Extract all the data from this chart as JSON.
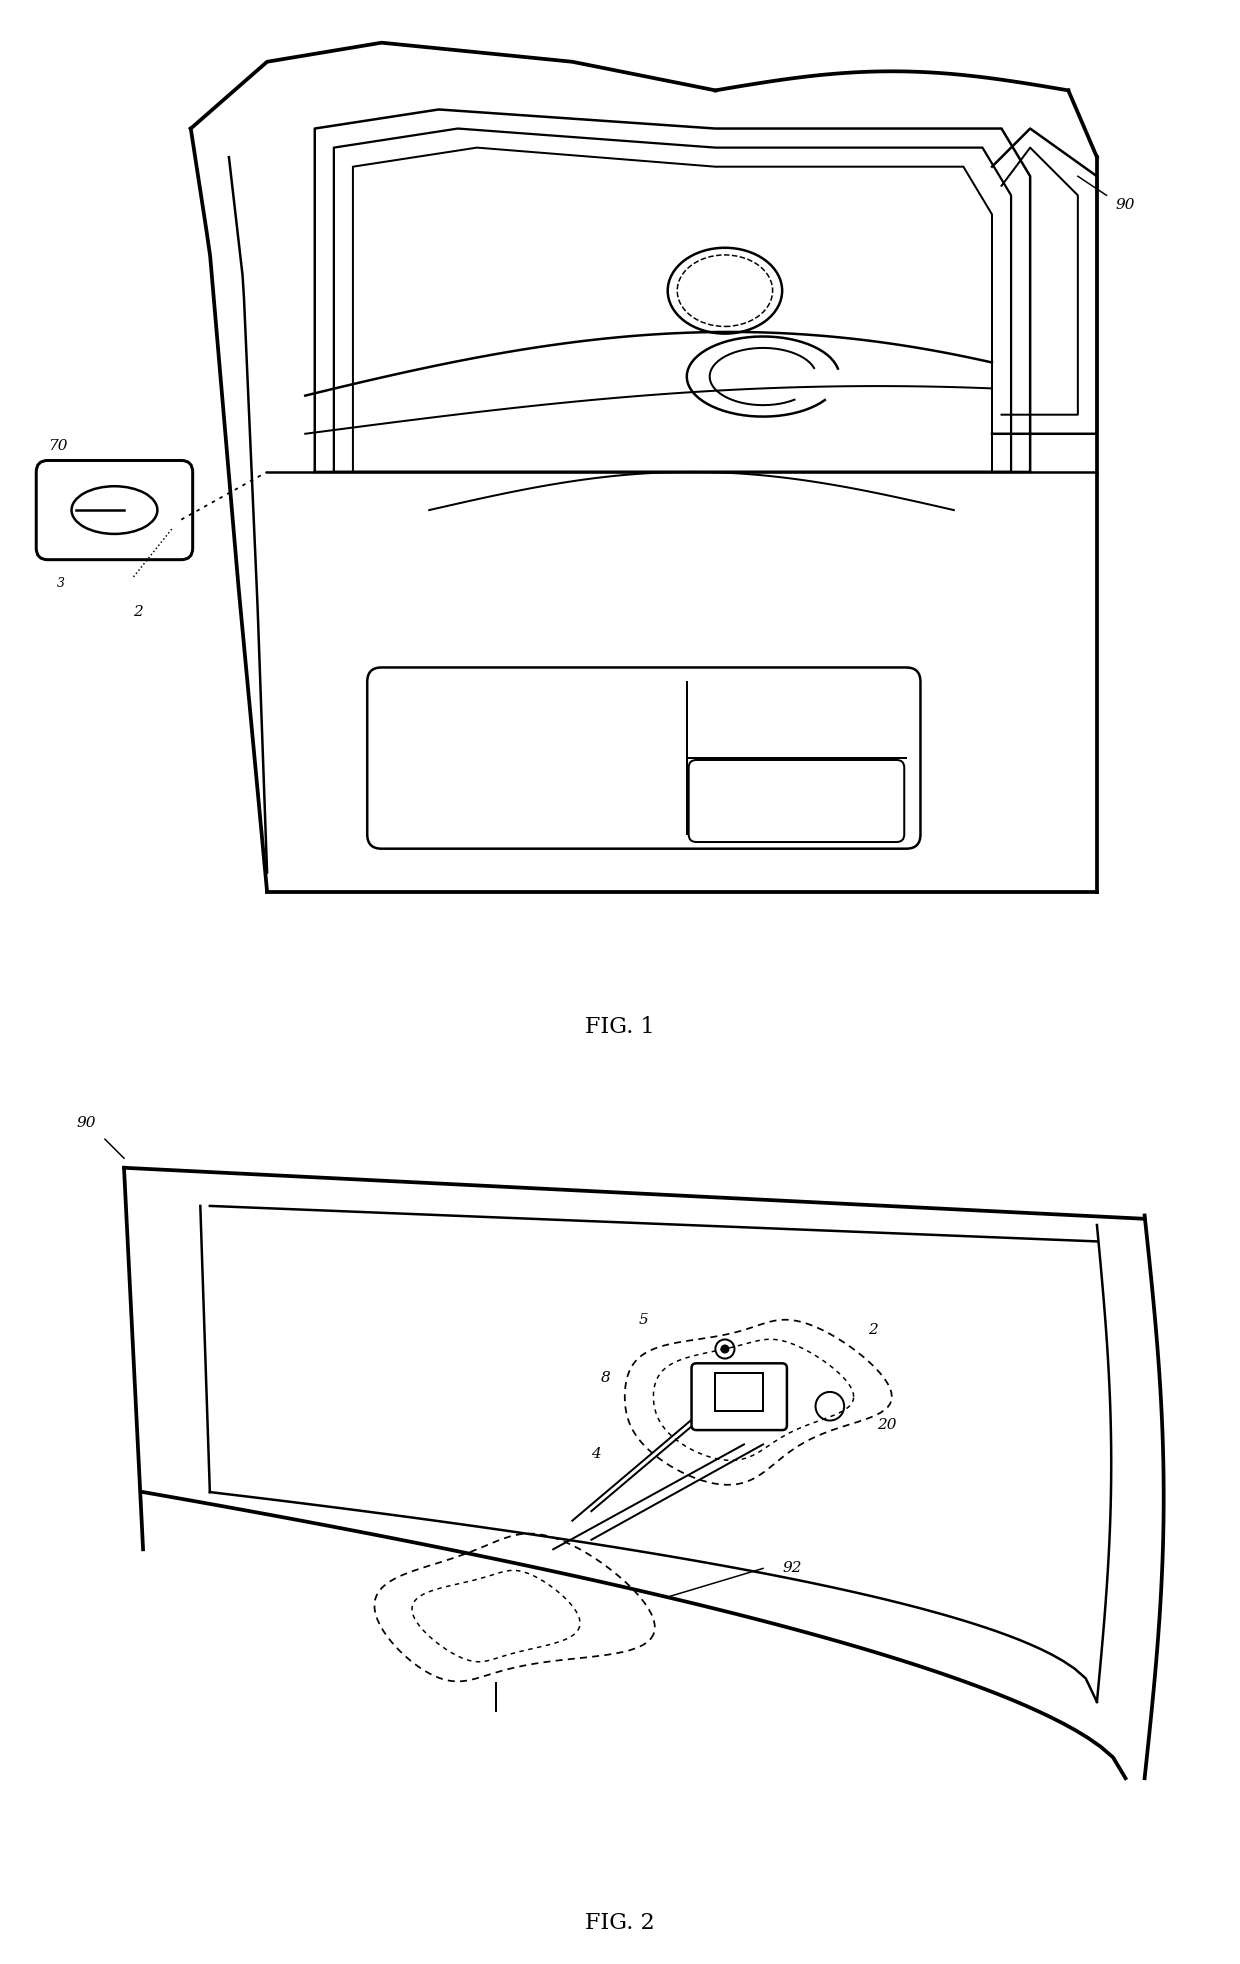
{
  "fig1_label": "FIG. 1",
  "fig2_label": "FIG. 2",
  "bg_color": "#ffffff",
  "line_color": "#000000",
  "line_width": 1.8
}
